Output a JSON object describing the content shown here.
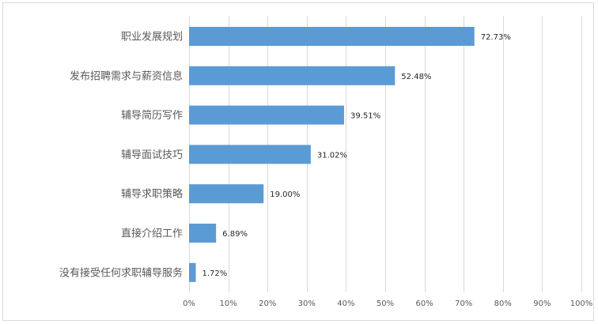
{
  "chart_data": {
    "type": "bar",
    "orientation": "horizontal",
    "title": "",
    "xlabel": "",
    "ylabel": "",
    "categories": [
      "职业发展规划",
      "发布招聘需求与薪资信息",
      "辅导简历写作",
      "辅导面试技巧",
      "辅导求职策略",
      "直接介绍工作",
      "没有接受任何求职辅导服务"
    ],
    "values": [
      72.73,
      52.48,
      39.51,
      31.02,
      19.0,
      6.89,
      1.72
    ],
    "data_labels": [
      "72.73%",
      "52.48%",
      "39.51%",
      "31.02%",
      "19.00%",
      "6.89%",
      "1.72%"
    ],
    "xlim": [
      0,
      100
    ],
    "ticks": [
      0,
      10,
      20,
      30,
      40,
      50,
      60,
      70,
      80,
      90,
      100
    ],
    "tick_labels": [
      "0%",
      "10%",
      "20%",
      "30%",
      "40%",
      "50%",
      "60%",
      "70%",
      "80%",
      "90%",
      "100%"
    ],
    "grid": "vertical",
    "legend": "none",
    "bar_color": "#5b9bd5",
    "gridline_color": "#d9d9d9"
  }
}
